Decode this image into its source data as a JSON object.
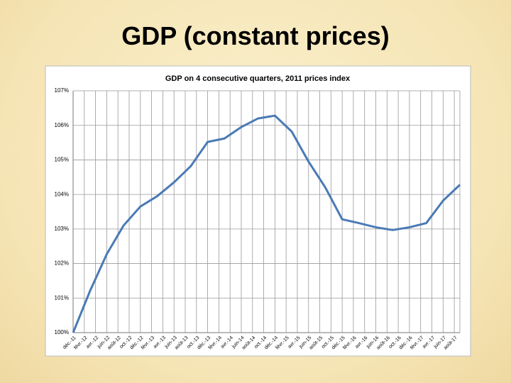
{
  "slide_title": "GDP (constant prices)",
  "chart_data": {
    "type": "line",
    "title": "GDP on 4 consecutive quarters, 2011 prices index",
    "x": [
      0,
      3,
      6,
      9,
      12,
      15,
      18,
      21,
      24,
      27,
      30,
      33,
      36,
      39,
      42,
      45,
      48,
      51,
      54,
      57,
      60,
      63,
      66,
      69
    ],
    "series": [
      {
        "name": "GDP",
        "color": "#4a7ab5",
        "values": [
          100,
          101.2,
          102.27,
          103.1,
          103.65,
          103.95,
          104.35,
          104.82,
          105.52,
          105.62,
          105.95,
          106.2,
          106.28,
          105.82,
          104.95,
          104.2,
          103.28,
          103.17,
          103.05,
          102.97,
          103.05,
          103.17,
          103.82,
          104.28
        ]
      }
    ],
    "xlim": [
      0,
      69
    ],
    "xticks": [
      {
        "value": 0,
        "label": "déc.-11"
      },
      {
        "value": 2,
        "label": "févr.-12"
      },
      {
        "value": 4,
        "label": "avr.-12"
      },
      {
        "value": 6,
        "label": "juin-12"
      },
      {
        "value": 8,
        "label": "août-12"
      },
      {
        "value": 10,
        "label": "oct.-12"
      },
      {
        "value": 12,
        "label": "déc.-12"
      },
      {
        "value": 14,
        "label": "févr.-13"
      },
      {
        "value": 16,
        "label": "avr.-13"
      },
      {
        "value": 18,
        "label": "juin-13"
      },
      {
        "value": 20,
        "label": "août-13"
      },
      {
        "value": 22,
        "label": "oct.-13"
      },
      {
        "value": 24,
        "label": "déc.-13"
      },
      {
        "value": 26,
        "label": "févr.-14"
      },
      {
        "value": 28,
        "label": "avr.-14"
      },
      {
        "value": 30,
        "label": "juin-14"
      },
      {
        "value": 32,
        "label": "août-14"
      },
      {
        "value": 34,
        "label": "oct.-14"
      },
      {
        "value": 36,
        "label": "déc.-14"
      },
      {
        "value": 38,
        "label": "févr.-15"
      },
      {
        "value": 40,
        "label": "avr.-15"
      },
      {
        "value": 42,
        "label": "juin-15"
      },
      {
        "value": 44,
        "label": "août-15"
      },
      {
        "value": 46,
        "label": "oct.-15"
      },
      {
        "value": 48,
        "label": "déc.-15"
      },
      {
        "value": 50,
        "label": "févr.-16"
      },
      {
        "value": 52,
        "label": "avr.-16"
      },
      {
        "value": 54,
        "label": "juin-16"
      },
      {
        "value": 56,
        "label": "août-16"
      },
      {
        "value": 58,
        "label": "oct.-16"
      },
      {
        "value": 60,
        "label": "déc.-16"
      },
      {
        "value": 62,
        "label": "févr.-17"
      },
      {
        "value": 64,
        "label": "avr.-17"
      },
      {
        "value": 66,
        "label": "juin-17"
      },
      {
        "value": 68,
        "label": "août-17"
      }
    ],
    "ylim": [
      100,
      107
    ],
    "yticks": [
      {
        "value": 100,
        "label": "100%"
      },
      {
        "value": 101,
        "label": "101%"
      },
      {
        "value": 102,
        "label": "102%"
      },
      {
        "value": 103,
        "label": "103%"
      },
      {
        "value": 104,
        "label": "104%"
      },
      {
        "value": 105,
        "label": "105%"
      },
      {
        "value": 106,
        "label": "106%"
      },
      {
        "value": 107,
        "label": "107%"
      }
    ],
    "grid": true
  }
}
